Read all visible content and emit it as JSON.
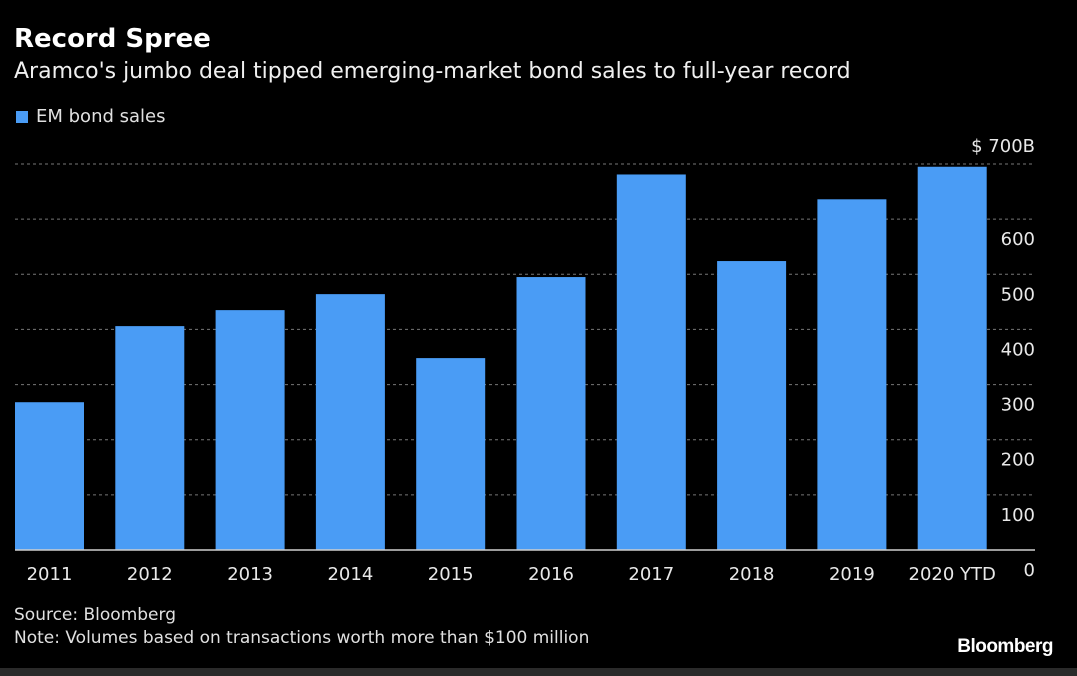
{
  "chart_data": {
    "type": "bar",
    "title": "Record Spree",
    "subtitle": "Aramco's jumbo deal tipped emerging-market bond sales to full-year record",
    "categories": [
      "2011",
      "2012",
      "2013",
      "2014",
      "2015",
      "2016",
      "2017",
      "2018",
      "2019",
      "2020 YTD"
    ],
    "series": [
      {
        "name": "EM bond sales",
        "values": [
          268,
          406,
          435,
          464,
          348,
          495,
          681,
          524,
          636,
          695
        ],
        "color": "#4a9cf5"
      }
    ],
    "xlabel": "",
    "ylabel": "",
    "ylim": [
      0,
      700
    ],
    "yticks": [
      0,
      100,
      200,
      300,
      400,
      500,
      600,
      700
    ],
    "ytick_labels": [
      "0",
      "100",
      "200",
      "300",
      "400",
      "500",
      "600",
      "$ 700B"
    ],
    "y_axis_side": "right",
    "grid": true,
    "legend_position": "top-left"
  },
  "footer": {
    "source": "Source: Bloomberg",
    "note": "Note: Volumes based on transactions worth more than $100 million",
    "logo": "Bloomberg"
  },
  "colors": {
    "background": "#000000",
    "bar": "#4a9cf5",
    "grid": "#777777"
  }
}
